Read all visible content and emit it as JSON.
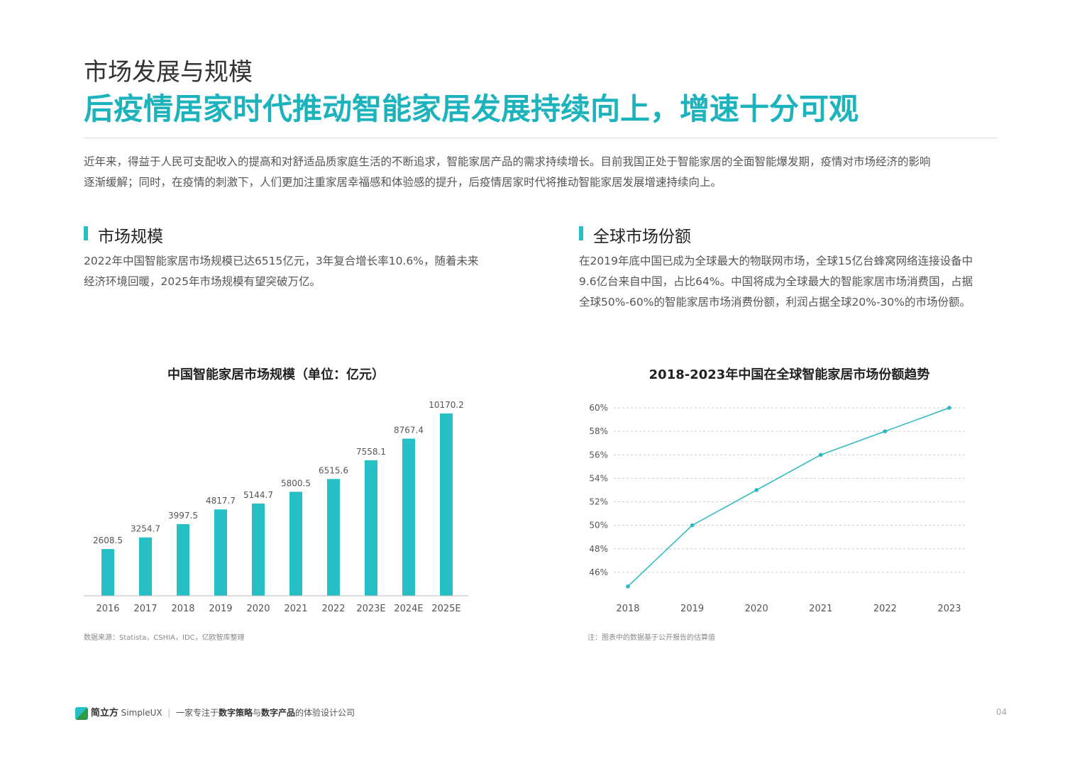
{
  "header": {
    "section": "市场发展与规模",
    "title": "后疫情居家时代推动智能家居发展持续向上，增速十分可观"
  },
  "intro": [
    "近年来，得益于人民可支配收入的提高和对舒适品质家庭生活的不断追求，智能家居产品的需求持续增长。目前我国正处于智能家居的全面智能爆发期，疫情对市场经济的影响",
    "逐渐缓解；同时，在疫情的刺激下，人们更加注重家居幸福感和体验感的提升，后疫情居家时代将推动智能家居发展增速持续向上。"
  ],
  "blocks": [
    {
      "heading": "市场规模",
      "lines": [
        "2022年中国智能家居市场规模已达6515亿元，3年复合增长率10.6%，随着未来",
        "经济环境回暖，2025年市场规模有望突破万亿。"
      ]
    },
    {
      "heading": "全球市场份额",
      "lines": [
        "在2019年底中国已成为全球最大的物联网市场，全球15亿台蜂窝网络连接设备中",
        "9.6亿台来自中国，占比64%。中国将成为全球最大的智能家居市场消费国，占据",
        "全球50%-60%的智能家居市场消费份额，利润占据全球20%-30%的市场份额。"
      ]
    }
  ],
  "chart_data": [
    {
      "type": "bar",
      "title": "中国智能家居市场规模（单位：亿元）",
      "categories": [
        "2016",
        "2017",
        "2018",
        "2019",
        "2020",
        "2021",
        "2022",
        "2023E",
        "2024E",
        "2025E"
      ],
      "values": [
        2608.5,
        3254.7,
        3997.5,
        4817.7,
        5144.7,
        5800.5,
        6515.6,
        7558.1,
        8767.4,
        10170.2
      ],
      "color": "#26bfc6",
      "ylim": [
        0,
        11000
      ],
      "source": "数据来源：Statista，CSHIA，IDC，亿欧智库整理"
    },
    {
      "type": "line",
      "title": "2018-2023年中国在全球智能家居市场份额趋势",
      "categories": [
        "2018",
        "2019",
        "2020",
        "2021",
        "2022",
        "2023"
      ],
      "values": [
        44.8,
        50,
        53,
        56,
        58,
        60
      ],
      "color": "#2bb8c0",
      "ylim": [
        44,
        60
      ],
      "grid": true,
      "yticks": [
        {
          "value": 46,
          "label": "46%"
        },
        {
          "value": 48,
          "label": "48%"
        },
        {
          "value": 50,
          "label": "50%"
        },
        {
          "value": 52,
          "label": "52%"
        },
        {
          "value": 54,
          "label": "54%"
        },
        {
          "value": 56,
          "label": "56%"
        },
        {
          "value": 58,
          "label": "58%"
        },
        {
          "value": 60,
          "label": "60%"
        }
      ],
      "source": "注：图表中的数据基于公开报告的估算值"
    }
  ],
  "footer": {
    "brand": "简立方",
    "brand_en": "SimpleUX",
    "tagline": [
      "一家专注于",
      "数字策略",
      "与",
      "数字产品",
      "的体验设计公司"
    ],
    "page": "04"
  }
}
